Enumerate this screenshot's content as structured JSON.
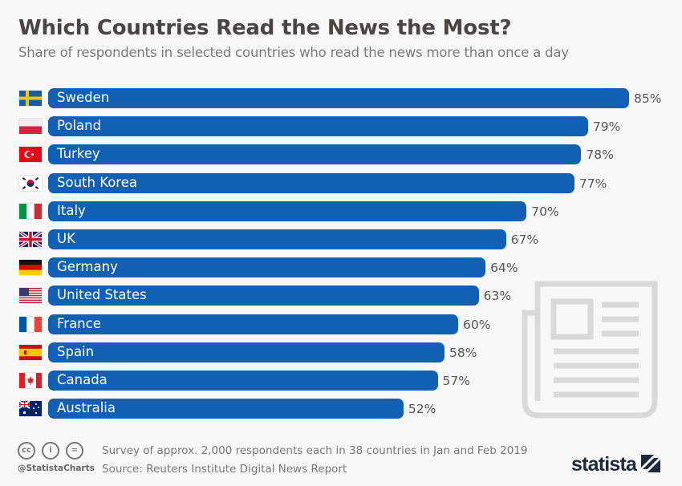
{
  "chart_data": {
    "type": "bar",
    "orientation": "horizontal",
    "title": "Which Countries Read the News the Most?",
    "subtitle": "Share of respondents in selected countries who read the news more than once a day",
    "categories": [
      "Sweden",
      "Poland",
      "Turkey",
      "South Korea",
      "Italy",
      "UK",
      "Germany",
      "United States",
      "France",
      "Spain",
      "Canada",
      "Australia"
    ],
    "values": [
      85,
      79,
      78,
      77,
      70,
      67,
      64,
      63,
      60,
      58,
      57,
      52
    ],
    "value_labels": [
      "85%",
      "79%",
      "78%",
      "77%",
      "70%",
      "67%",
      "64%",
      "63%",
      "60%",
      "58%",
      "57%",
      "52%"
    ],
    "flags": [
      "se",
      "pl",
      "tr",
      "kr",
      "it",
      "gb",
      "de",
      "us",
      "fr",
      "es",
      "ca",
      "au"
    ],
    "xlim": [
      0,
      85
    ],
    "grid": false,
    "bar_color": "#1160b6"
  },
  "footer": {
    "note": "Survey of approx. 2,000 respondents each in 38 countries in Jan and Feb 2019",
    "source": "Source: Reuters Institute Digital News Report",
    "handle": "@StatistaCharts",
    "logo": "statista",
    "license_icons": [
      "cc-icon",
      "by-icon",
      "nd-icon"
    ]
  },
  "decoration": {
    "icon": "newspaper-icon"
  }
}
